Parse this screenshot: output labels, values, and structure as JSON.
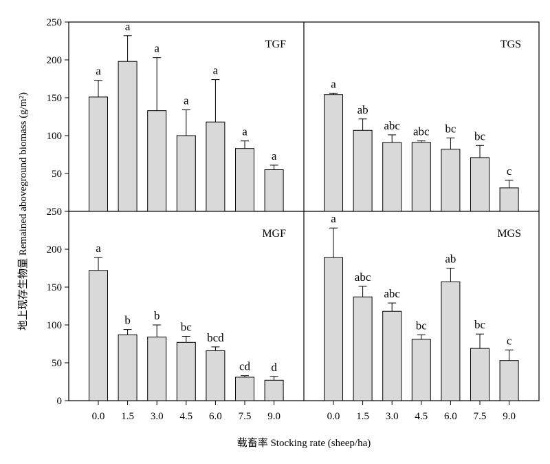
{
  "chart_data": {
    "type": "bar",
    "ylabel": "地上现存生物量 Remained aboveground biomass (g/m²)",
    "xlabel": "载畜率 Stocking rate (sheep/ha)",
    "categories": [
      "0.0",
      "1.5",
      "3.0",
      "4.5",
      "6.0",
      "7.5",
      "9.0"
    ],
    "ylim": [
      0,
      250
    ],
    "yticks_top": [
      "50",
      "100",
      "150",
      "200",
      "250"
    ],
    "yticks_bottom": [
      "0",
      "50",
      "100",
      "150",
      "200",
      "250"
    ],
    "panels": [
      {
        "name": "TGF",
        "values": [
          151,
          198,
          133,
          100,
          118,
          83,
          55
        ],
        "errors": [
          22,
          34,
          70,
          34,
          56,
          10,
          6
        ],
        "letters": [
          "a",
          "a",
          "a",
          "a",
          "a",
          "a",
          "a"
        ]
      },
      {
        "name": "TGS",
        "values": [
          154,
          107,
          91,
          91,
          82,
          71,
          31
        ],
        "errors": [
          2,
          15,
          10,
          2,
          15,
          16,
          10
        ],
        "letters": [
          "a",
          "ab",
          "abc",
          "abc",
          "bc",
          "bc",
          "c"
        ]
      },
      {
        "name": "MGF",
        "values": [
          172,
          87,
          84,
          77,
          66,
          31,
          27
        ],
        "errors": [
          17,
          7,
          16,
          8,
          5,
          2,
          5
        ],
        "letters": [
          "a",
          "b",
          "b",
          "bc",
          "bcd",
          "cd",
          "d"
        ]
      },
      {
        "name": "MGS",
        "values": [
          189,
          137,
          118,
          81,
          157,
          69,
          53
        ],
        "errors": [
          39,
          14,
          11,
          6,
          18,
          19,
          14
        ],
        "letters": [
          "a",
          "abc",
          "abc",
          "bc",
          "ab",
          "bc",
          "c"
        ]
      }
    ]
  }
}
